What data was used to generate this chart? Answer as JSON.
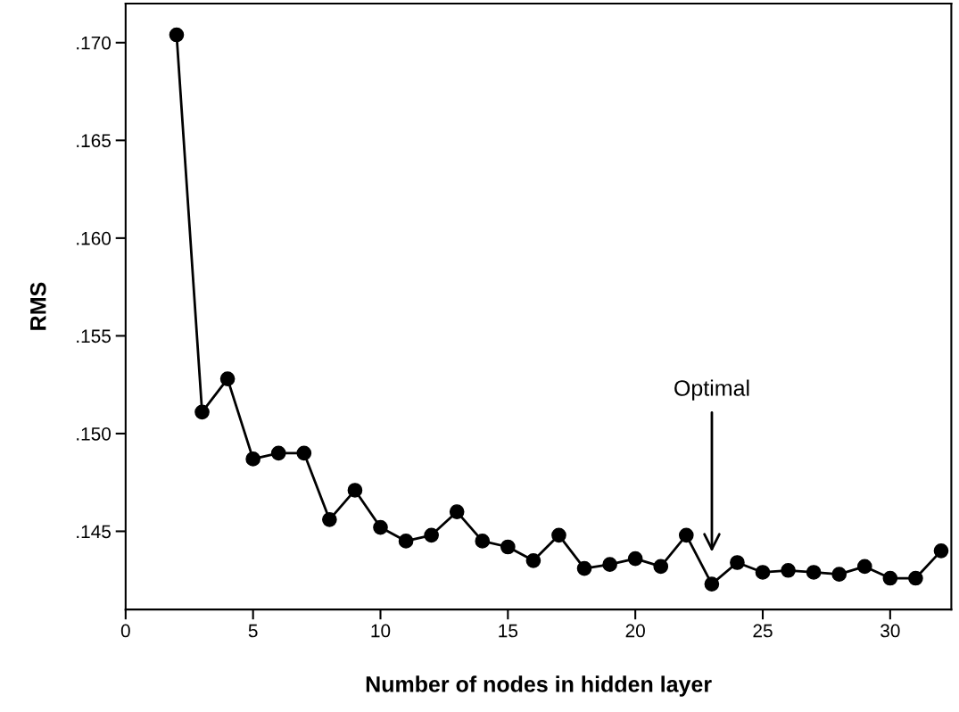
{
  "chart_data": {
    "type": "line",
    "xlabel": "Number of nodes in hidden layer",
    "ylabel": "RMS",
    "x": [
      2,
      3,
      4,
      5,
      6,
      7,
      8,
      9,
      10,
      11,
      12,
      13,
      14,
      15,
      16,
      17,
      18,
      19,
      20,
      21,
      22,
      23,
      24,
      25,
      26,
      27,
      28,
      29,
      30,
      31,
      32
    ],
    "series": [
      {
        "color": "#000000",
        "values": [
          0.1704,
          0.1511,
          0.1528,
          0.1487,
          0.149,
          0.149,
          0.1456,
          0.1471,
          0.1452,
          0.1445,
          0.1448,
          0.146,
          0.1445,
          0.1442,
          0.1435,
          0.1448,
          0.1431,
          0.1433,
          0.1436,
          0.1432,
          0.1448,
          0.1423,
          0.1434,
          0.1429,
          0.143,
          0.1429,
          0.1428,
          0.1432,
          0.1426,
          0.1426,
          0.144
        ]
      }
    ],
    "xlim": [
      0,
      32.4
    ],
    "ylim": [
      0.141,
      0.172
    ],
    "xticks": [
      0,
      5,
      10,
      15,
      20,
      25,
      30
    ],
    "yticks": [
      {
        "value": 0.145,
        "label": ".145"
      },
      {
        "value": 0.15,
        "label": ".150"
      },
      {
        "value": 0.155,
        "label": ".155"
      },
      {
        "value": 0.16,
        "label": ".160"
      },
      {
        "value": 0.165,
        "label": ".165"
      },
      {
        "value": 0.17,
        "label": ".170"
      }
    ],
    "annotations": [
      "Optimal"
    ],
    "marker": "circle",
    "line_style": "solid",
    "grid": false,
    "legend": false
  }
}
